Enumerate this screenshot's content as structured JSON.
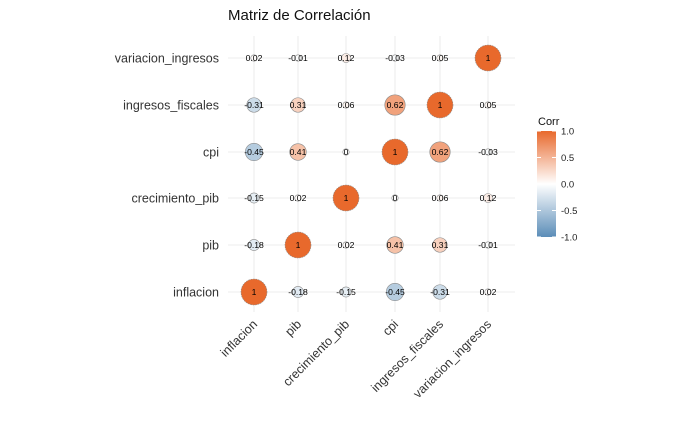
{
  "chart_data": {
    "type": "heatmap",
    "title": "Matriz de Correlación",
    "x": [
      "inflacion",
      "pib",
      "crecimiento_pib",
      "cpi",
      "ingresos_fiscales",
      "variacion_ingresos"
    ],
    "y": [
      "inflacion",
      "pib",
      "crecimiento_pib",
      "cpi",
      "ingresos_fiscales",
      "variacion_ingresos"
    ],
    "values": [
      [
        1,
        -0.18,
        -0.15,
        -0.45,
        -0.31,
        0.02
      ],
      [
        -0.18,
        1,
        0.02,
        0.41,
        0.31,
        -0.01
      ],
      [
        -0.15,
        0.02,
        1,
        0,
        0.06,
        0.12
      ],
      [
        -0.45,
        0.41,
        0,
        1,
        0.62,
        -0.03
      ],
      [
        -0.31,
        0.31,
        0.06,
        0.62,
        1,
        0.05
      ],
      [
        0.02,
        -0.01,
        0.12,
        -0.03,
        0.05,
        1
      ]
    ],
    "labels": [
      [
        "1",
        "-0.18",
        "-0.15",
        "-0.45",
        "-0.31",
        "0.02"
      ],
      [
        "-0.18",
        "1",
        "0.02",
        "0.41",
        "0.31",
        "-0.01"
      ],
      [
        "-0.15",
        "0.02",
        "1",
        "0",
        "0.06",
        "0.12"
      ],
      [
        "-0.45",
        "0.41",
        "0",
        "1",
        "0.62",
        "-0.03"
      ],
      [
        "-0.31",
        "0.31",
        "0.06",
        "0.62",
        "1",
        "0.05"
      ],
      [
        "0.02",
        "-0.01",
        "0.12",
        "-0.03",
        "0.05",
        "1"
      ]
    ],
    "legend": {
      "title": "Corr",
      "ticks": [
        "1.0",
        "0.5",
        "0.0",
        "-0.5",
        "-1.0"
      ],
      "tick_values": [
        1,
        0.5,
        0,
        -0.5,
        -1
      ],
      "placement": "right"
    },
    "colors": {
      "high": "#E8692C",
      "mid": "#FFFFFF",
      "low": "#5B8DB8",
      "grid": "#E6E6E6",
      "outline": "#8C8C8C"
    },
    "vlim": [
      -1,
      1
    ],
    "grid": true
  }
}
